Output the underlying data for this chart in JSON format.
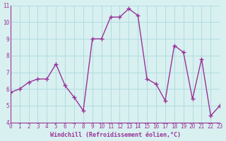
{
  "x": [
    0,
    1,
    2,
    3,
    4,
    5,
    6,
    7,
    8,
    9,
    10,
    11,
    12,
    13,
    14,
    15,
    16,
    17,
    18,
    19,
    20,
    21,
    22,
    23
  ],
  "y": [
    5.8,
    6.0,
    6.4,
    6.6,
    6.6,
    7.5,
    6.2,
    5.5,
    4.7,
    9.0,
    9.0,
    10.3,
    10.3,
    10.8,
    10.4,
    6.6,
    6.3,
    5.3,
    8.6,
    8.2,
    5.4,
    7.8,
    4.4,
    5.0
  ],
  "xlim": [
    0,
    23
  ],
  "ylim": [
    4,
    11
  ],
  "xticks": [
    0,
    1,
    2,
    3,
    4,
    5,
    6,
    7,
    8,
    9,
    10,
    11,
    12,
    13,
    14,
    15,
    16,
    17,
    18,
    19,
    20,
    21,
    22,
    23
  ],
  "yticks": [
    4,
    5,
    6,
    7,
    8,
    9,
    10,
    11
  ],
  "xlabel": "Windchill (Refroidissement éolien,°C)",
  "line_color": "#993399",
  "marker": "+",
  "bg_color": "#d8f0f0",
  "grid_color": "#b0dde0",
  "tick_color": "#993399",
  "label_color": "#993399",
  "font": "monospace"
}
